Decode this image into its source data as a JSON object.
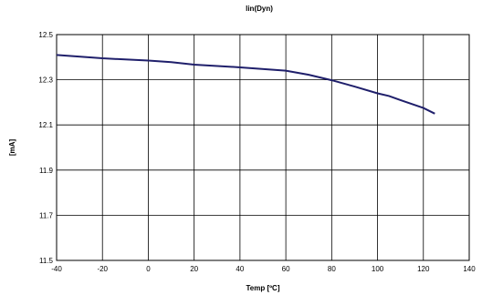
{
  "chart_data": {
    "type": "line",
    "title": "lin(Dyn)",
    "xlabel": "Temp [ºC]",
    "ylabel": "[mA]",
    "xlim": [
      -40,
      140
    ],
    "ylim": [
      11.5,
      12.5
    ],
    "x_ticks": [
      "-40",
      "-20",
      "0",
      "20",
      "40",
      "60",
      "80",
      "100",
      "120",
      "140"
    ],
    "y_ticks": [
      "12.5",
      "12.3",
      "12.1",
      "11.9",
      "11.7",
      "11.5"
    ],
    "grid": true,
    "series": [
      {
        "color": "#1f1f6b",
        "x": [
          -40,
          -20,
          0,
          10,
          20,
          40,
          60,
          70,
          80,
          90,
          100,
          105,
          110,
          120,
          125
        ],
        "y": [
          12.41,
          12.395,
          12.385,
          12.378,
          12.367,
          12.355,
          12.34,
          12.322,
          12.298,
          12.27,
          12.24,
          12.228,
          12.21,
          12.175,
          12.15
        ]
      }
    ]
  }
}
